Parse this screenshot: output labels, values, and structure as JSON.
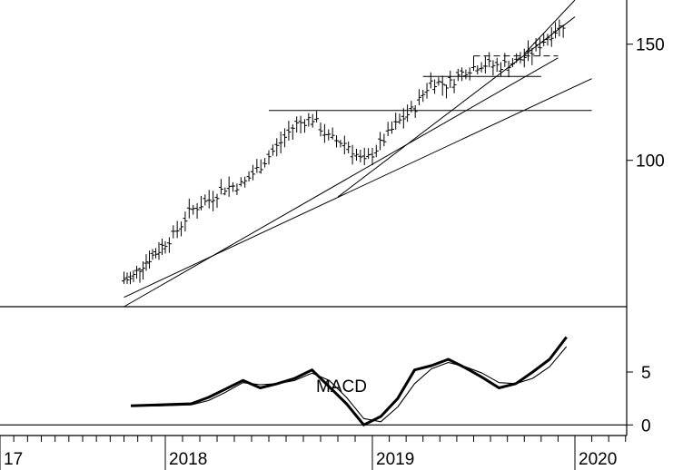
{
  "chart_data": [
    {
      "type": "ohlc",
      "panel": "price",
      "y_scale": "log",
      "ylim": [
        60,
        175
      ],
      "y_ticks": [
        {
          "value": 150,
          "label": "150"
        },
        {
          "value": 100,
          "label": "100"
        }
      ],
      "grid": false,
      "series": [
        {
          "style": "weekly-bars",
          "x": [
            "2017-10",
            "2017-11",
            "2017-12",
            "2018-01",
            "2018-02",
            "2018-03",
            "2018-04",
            "2018-05",
            "2018-06",
            "2018-07",
            "2018-08",
            "2018-09",
            "2018-10",
            "2018-11",
            "2018-12",
            "2019-01",
            "2019-02",
            "2019-03",
            "2019-04",
            "2019-05",
            "2019-06",
            "2019-07",
            "2019-08",
            "2019-09",
            "2019-10",
            "2019-11",
            "2019-12"
          ],
          "close": [
            66,
            70,
            73,
            77,
            84,
            87,
            91,
            92,
            98,
            105,
            113,
            116,
            108,
            106,
            99,
            106,
            114,
            120,
            132,
            130,
            137,
            140,
            139,
            141,
            146,
            155,
            162
          ]
        }
      ],
      "annotations": [
        {
          "kind": "support-line",
          "from": [
            "2017-10",
            62
          ],
          "to": [
            "2020-02",
            133
          ]
        },
        {
          "kind": "support-line",
          "from": [
            "2017-10",
            60
          ],
          "to": [
            "2019-12",
            143
          ]
        },
        {
          "kind": "trend-channel",
          "from": [
            "2018-11",
            88
          ],
          "to": [
            "2020-01",
            165
          ]
        },
        {
          "kind": "trend-channel",
          "from": [
            "2019-10",
            145
          ],
          "to": [
            "2020-01",
            175
          ]
        },
        {
          "kind": "horizontal",
          "level": 119,
          "from": "2018-07",
          "to": "2020-02"
        },
        {
          "kind": "horizontal",
          "level": 134,
          "from": "2019-04",
          "to": "2019-11"
        },
        {
          "kind": "horizontal-dashed",
          "level": 144,
          "from": "2019-07",
          "to": "2019-12"
        }
      ]
    },
    {
      "type": "line",
      "panel": "indicator",
      "ylim": [
        -1,
        11
      ],
      "y_ticks": [
        {
          "value": 5,
          "label": "5"
        },
        {
          "value": 0,
          "label": "0"
        }
      ],
      "annotation_label": "MACD",
      "zero_line": true,
      "series": [
        {
          "style": "thick",
          "x": [
            "2017-10",
            "2017-12",
            "2018-02",
            "2018-03",
            "2018-04",
            "2018-05",
            "2018-06",
            "2018-07",
            "2018-08",
            "2018-09",
            "2018-10",
            "2018-11",
            "2018-12",
            "2019-01",
            "2019-02",
            "2019-03",
            "2019-04",
            "2019-05",
            "2019-06",
            "2019-07",
            "2019-08",
            "2019-09",
            "2019-10",
            "2019-11",
            "2019-12"
          ],
          "values": [
            1.8,
            1.9,
            2.0,
            2.6,
            3.4,
            4.2,
            3.5,
            3.9,
            4.4,
            5.2,
            3.6,
            2.0,
            0.0,
            0.8,
            2.5,
            5.2,
            5.6,
            6.2,
            5.4,
            4.5,
            3.5,
            3.9,
            5.0,
            6.2,
            8.3
          ]
        },
        {
          "style": "thin",
          "x": [
            "2017-10",
            "2017-12",
            "2018-02",
            "2018-03",
            "2018-04",
            "2018-05",
            "2018-06",
            "2018-07",
            "2018-08",
            "2018-09",
            "2018-10",
            "2018-11",
            "2018-12",
            "2019-01",
            "2019-02",
            "2019-03",
            "2019-04",
            "2019-05",
            "2019-06",
            "2019-07",
            "2019-08",
            "2019-09",
            "2019-10",
            "2019-11",
            "2019-12"
          ],
          "values": [
            1.8,
            1.8,
            1.9,
            2.3,
            3.1,
            4.0,
            3.8,
            3.9,
            4.2,
            4.9,
            4.2,
            2.6,
            0.6,
            0.3,
            1.7,
            3.9,
            5.3,
            5.9,
            5.5,
            4.9,
            4.0,
            3.9,
            4.4,
            5.5,
            7.4
          ]
        }
      ]
    }
  ],
  "x_axis": {
    "ticks": [
      {
        "date": "2017-01",
        "label": "17"
      },
      {
        "date": "2018-01",
        "label": "2018"
      },
      {
        "date": "2019-01",
        "label": "2019"
      },
      {
        "date": "2020-01",
        "label": "2020"
      }
    ]
  },
  "colors": {
    "ink": "#000000",
    "background": "#ffffff"
  }
}
